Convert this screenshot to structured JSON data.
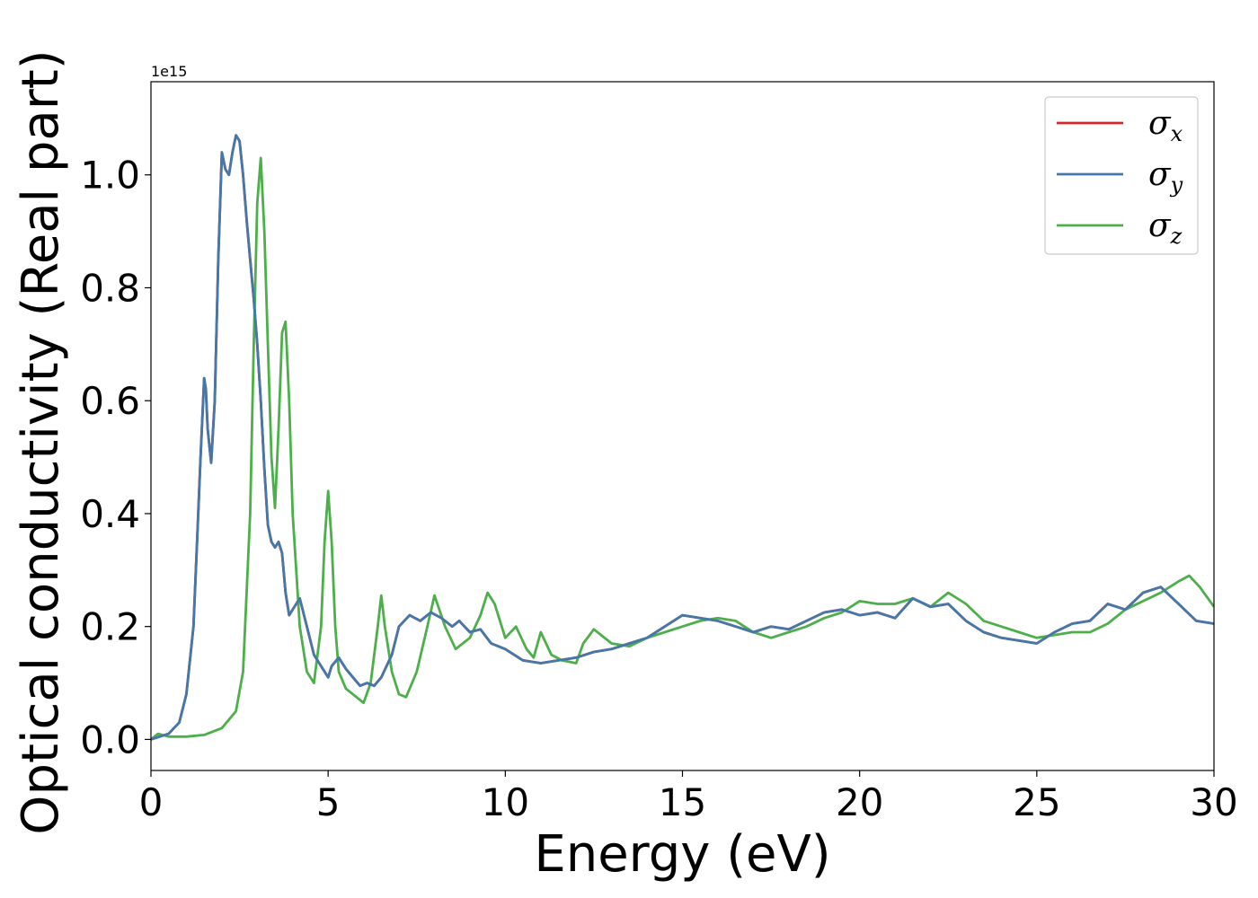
{
  "chart_data": {
    "type": "line",
    "xlabel": "Energy (eV)",
    "ylabel": "Optical conductivity (Real part)",
    "y_offset_label": "1e15",
    "xlim": [
      0,
      30
    ],
    "ylim": [
      -0.055,
      1.165
    ],
    "xticks": [
      0,
      5,
      10,
      15,
      20,
      25,
      30
    ],
    "yticks": [
      0.0,
      0.2,
      0.4,
      0.6,
      0.8,
      1.0
    ],
    "xtick_labels": [
      "0",
      "5",
      "10",
      "15",
      "20",
      "25",
      "30"
    ],
    "ytick_labels": [
      "0.0",
      "0.2",
      "0.4",
      "0.6",
      "0.8",
      "1.0"
    ],
    "grid": false,
    "legend_position": "top-right",
    "series": [
      {
        "name": "σ",
        "sub": "x",
        "color": "#d62728",
        "x": [
          0,
          0.5,
          0.8,
          1.0,
          1.2,
          1.3,
          1.4,
          1.5,
          1.55,
          1.6,
          1.7,
          1.8,
          1.9,
          2.0,
          2.1,
          2.2,
          2.3,
          2.4,
          2.5,
          2.6,
          2.7,
          2.8,
          2.9,
          3.0,
          3.1,
          3.2,
          3.3,
          3.4,
          3.5,
          3.6,
          3.7,
          3.8,
          3.9,
          4.0,
          4.2,
          4.4,
          4.6,
          4.8,
          5.0,
          5.1,
          5.3,
          5.5,
          5.7,
          5.9,
          6.1,
          6.3,
          6.5,
          6.8,
          7.0,
          7.3,
          7.6,
          7.9,
          8.2,
          8.5,
          8.7,
          9.0,
          9.3,
          9.6,
          10.0,
          10.5,
          11.0,
          11.5,
          12.0,
          12.5,
          13.0,
          13.5,
          14.0,
          14.5,
          15.0,
          15.5,
          16.0,
          16.5,
          17.0,
          17.5,
          18.0,
          18.5,
          19.0,
          19.5,
          20.0,
          20.5,
          21.0,
          21.5,
          22.0,
          22.5,
          23.0,
          23.5,
          24.0,
          24.5,
          25.0,
          25.5,
          26.0,
          26.5,
          27.0,
          27.5,
          28.0,
          28.5,
          29.0,
          29.5,
          30.0
        ],
        "y": [
          0.0,
          0.01,
          0.03,
          0.08,
          0.2,
          0.35,
          0.5,
          0.64,
          0.62,
          0.55,
          0.49,
          0.6,
          0.85,
          1.04,
          1.01,
          1.0,
          1.04,
          1.07,
          1.06,
          1.0,
          0.92,
          0.85,
          0.78,
          0.7,
          0.6,
          0.48,
          0.38,
          0.35,
          0.34,
          0.35,
          0.33,
          0.26,
          0.22,
          0.23,
          0.25,
          0.2,
          0.15,
          0.13,
          0.11,
          0.13,
          0.145,
          0.125,
          0.11,
          0.095,
          0.1,
          0.095,
          0.11,
          0.15,
          0.2,
          0.22,
          0.21,
          0.225,
          0.215,
          0.2,
          0.21,
          0.19,
          0.195,
          0.17,
          0.16,
          0.14,
          0.135,
          0.14,
          0.145,
          0.155,
          0.16,
          0.17,
          0.18,
          0.2,
          0.22,
          0.215,
          0.21,
          0.2,
          0.19,
          0.2,
          0.195,
          0.21,
          0.225,
          0.23,
          0.22,
          0.225,
          0.215,
          0.25,
          0.235,
          0.24,
          0.21,
          0.19,
          0.18,
          0.175,
          0.17,
          0.19,
          0.205,
          0.21,
          0.24,
          0.23,
          0.26,
          0.27,
          0.24,
          0.21,
          0.205
        ]
      },
      {
        "name": "σ",
        "sub": "y",
        "color": "#4477aa",
        "x": [
          0,
          0.5,
          0.8,
          1.0,
          1.2,
          1.3,
          1.4,
          1.5,
          1.55,
          1.6,
          1.7,
          1.8,
          1.9,
          2.0,
          2.1,
          2.2,
          2.3,
          2.4,
          2.5,
          2.6,
          2.7,
          2.8,
          2.9,
          3.0,
          3.1,
          3.2,
          3.3,
          3.4,
          3.5,
          3.6,
          3.7,
          3.8,
          3.9,
          4.0,
          4.2,
          4.4,
          4.6,
          4.8,
          5.0,
          5.1,
          5.3,
          5.5,
          5.7,
          5.9,
          6.1,
          6.3,
          6.5,
          6.8,
          7.0,
          7.3,
          7.6,
          7.9,
          8.2,
          8.5,
          8.7,
          9.0,
          9.3,
          9.6,
          10.0,
          10.5,
          11.0,
          11.5,
          12.0,
          12.5,
          13.0,
          13.5,
          14.0,
          14.5,
          15.0,
          15.5,
          16.0,
          16.5,
          17.0,
          17.5,
          18.0,
          18.5,
          19.0,
          19.5,
          20.0,
          20.5,
          21.0,
          21.5,
          22.0,
          22.5,
          23.0,
          23.5,
          24.0,
          24.5,
          25.0,
          25.5,
          26.0,
          26.5,
          27.0,
          27.5,
          28.0,
          28.5,
          29.0,
          29.5,
          30.0
        ],
        "y": [
          0.0,
          0.01,
          0.03,
          0.08,
          0.2,
          0.35,
          0.5,
          0.64,
          0.62,
          0.55,
          0.49,
          0.6,
          0.85,
          1.04,
          1.01,
          1.0,
          1.04,
          1.07,
          1.06,
          1.0,
          0.92,
          0.85,
          0.78,
          0.7,
          0.6,
          0.48,
          0.38,
          0.35,
          0.34,
          0.35,
          0.33,
          0.26,
          0.22,
          0.23,
          0.25,
          0.2,
          0.15,
          0.13,
          0.11,
          0.13,
          0.145,
          0.125,
          0.11,
          0.095,
          0.1,
          0.095,
          0.11,
          0.15,
          0.2,
          0.22,
          0.21,
          0.225,
          0.215,
          0.2,
          0.21,
          0.19,
          0.195,
          0.17,
          0.16,
          0.14,
          0.135,
          0.14,
          0.145,
          0.155,
          0.16,
          0.17,
          0.18,
          0.2,
          0.22,
          0.215,
          0.21,
          0.2,
          0.19,
          0.2,
          0.195,
          0.21,
          0.225,
          0.23,
          0.22,
          0.225,
          0.215,
          0.25,
          0.235,
          0.24,
          0.21,
          0.19,
          0.18,
          0.175,
          0.17,
          0.19,
          0.205,
          0.21,
          0.24,
          0.23,
          0.26,
          0.27,
          0.24,
          0.21,
          0.205
        ]
      },
      {
        "name": "σ",
        "sub": "z",
        "color": "#4daf4a",
        "x": [
          0,
          0.2,
          0.5,
          1.0,
          1.5,
          2.0,
          2.4,
          2.6,
          2.8,
          2.9,
          3.0,
          3.1,
          3.2,
          3.3,
          3.4,
          3.5,
          3.6,
          3.7,
          3.8,
          3.9,
          4.0,
          4.2,
          4.4,
          4.6,
          4.8,
          4.9,
          5.0,
          5.1,
          5.2,
          5.3,
          5.5,
          5.8,
          6.0,
          6.2,
          6.4,
          6.5,
          6.6,
          6.8,
          7.0,
          7.2,
          7.5,
          7.8,
          8.0,
          8.3,
          8.6,
          9.0,
          9.3,
          9.5,
          9.7,
          10.0,
          10.3,
          10.6,
          10.8,
          11.0,
          11.3,
          11.6,
          12.0,
          12.2,
          12.5,
          13.0,
          13.5,
          14.0,
          14.5,
          15.0,
          15.5,
          16.0,
          16.5,
          17.0,
          17.5,
          18.0,
          18.5,
          19.0,
          19.5,
          20.0,
          20.5,
          21.0,
          21.5,
          22.0,
          22.5,
          23.0,
          23.5,
          24.0,
          24.5,
          25.0,
          25.5,
          26.0,
          26.5,
          27.0,
          27.5,
          28.0,
          28.5,
          29.0,
          29.3,
          29.6,
          30.0
        ],
        "y": [
          0.0,
          0.01,
          0.005,
          0.005,
          0.008,
          0.02,
          0.05,
          0.12,
          0.4,
          0.7,
          0.95,
          1.03,
          0.9,
          0.7,
          0.5,
          0.41,
          0.55,
          0.72,
          0.74,
          0.6,
          0.4,
          0.2,
          0.12,
          0.1,
          0.2,
          0.35,
          0.44,
          0.35,
          0.2,
          0.12,
          0.09,
          0.075,
          0.065,
          0.1,
          0.2,
          0.255,
          0.2,
          0.12,
          0.08,
          0.075,
          0.12,
          0.2,
          0.255,
          0.2,
          0.16,
          0.18,
          0.22,
          0.26,
          0.24,
          0.18,
          0.2,
          0.16,
          0.145,
          0.19,
          0.15,
          0.14,
          0.135,
          0.17,
          0.195,
          0.17,
          0.165,
          0.18,
          0.19,
          0.2,
          0.21,
          0.215,
          0.21,
          0.19,
          0.18,
          0.19,
          0.2,
          0.215,
          0.225,
          0.245,
          0.24,
          0.24,
          0.25,
          0.235,
          0.26,
          0.24,
          0.21,
          0.2,
          0.19,
          0.18,
          0.185,
          0.19,
          0.19,
          0.205,
          0.23,
          0.245,
          0.26,
          0.28,
          0.29,
          0.27,
          0.235
        ]
      }
    ]
  }
}
